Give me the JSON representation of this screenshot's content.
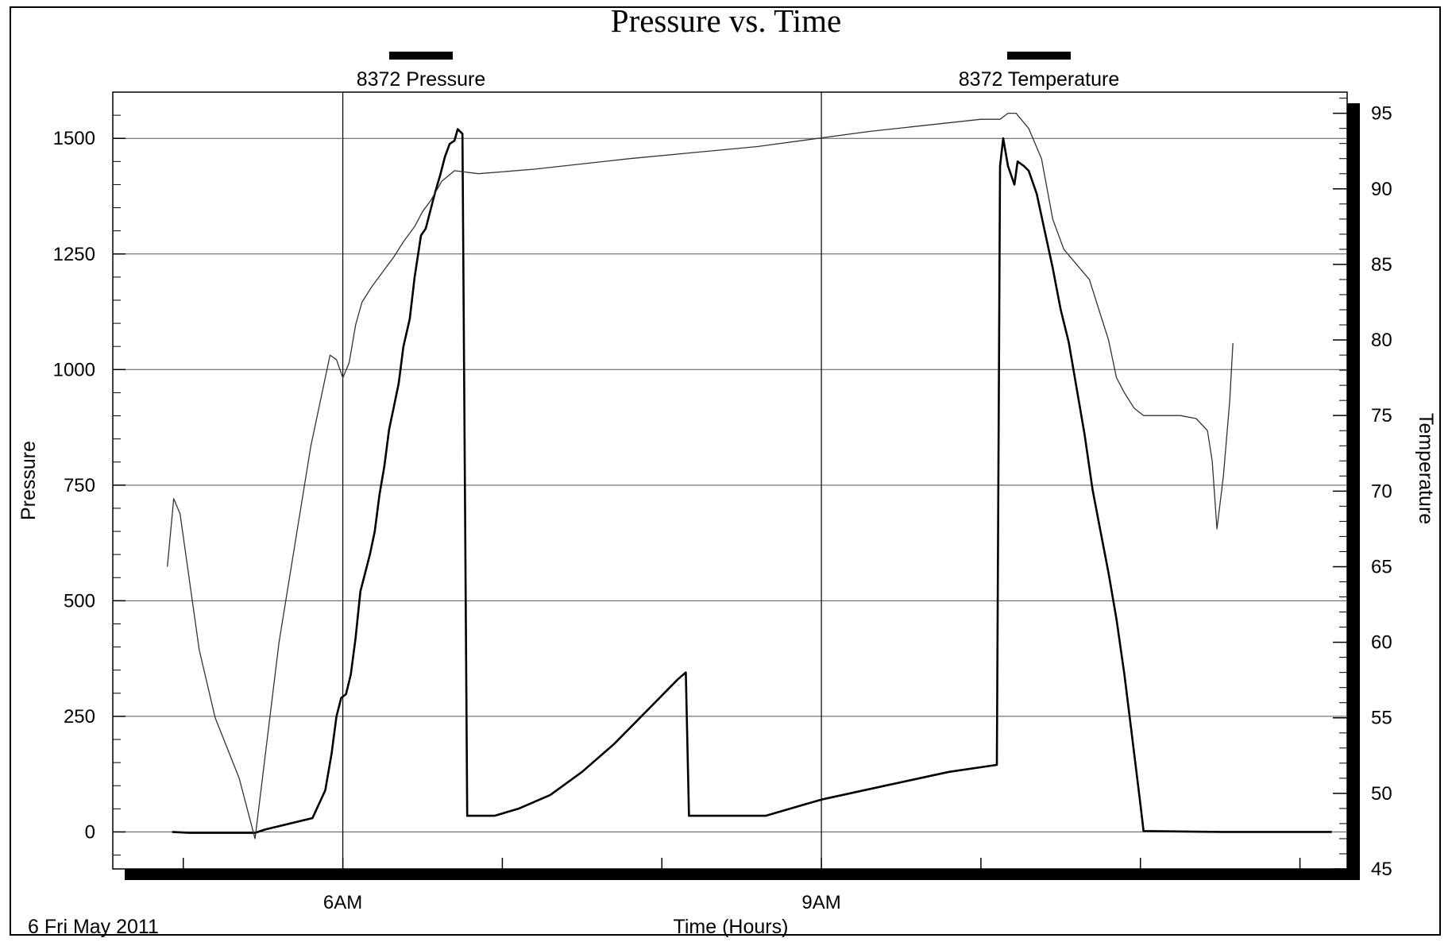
{
  "chart_data": {
    "type": "line",
    "title": "Pressure vs. Time",
    "xlabel": "Time (Hours)",
    "date_label": "6 Fri May 2011",
    "x_ticks": [
      {
        "label": "6AM",
        "hour": 6
      },
      {
        "label": "9AM",
        "hour": 9
      }
    ],
    "xlim": [
      4.558,
      12.296
    ],
    "y_left": {
      "label": "Pressure",
      "ylim": [
        -80,
        1600
      ],
      "ticks": [
        0,
        250,
        500,
        750,
        1000,
        1250,
        1500
      ]
    },
    "y_right": {
      "label": "Temperature",
      "ylim": [
        45,
        96.4
      ],
      "ticks": [
        45,
        50,
        55,
        60,
        65,
        70,
        75,
        80,
        85,
        90,
        95
      ]
    },
    "grid": true,
    "legend_position": "top",
    "series": [
      {
        "name": "8372 Pressure",
        "axis": "left",
        "color": "#000000",
        "points": [
          [
            4.93,
            0
          ],
          [
            5.04,
            -2
          ],
          [
            5.25,
            -2
          ],
          [
            5.45,
            -2
          ],
          [
            5.51,
            5
          ],
          [
            5.81,
            30
          ],
          [
            5.89,
            90
          ],
          [
            5.93,
            170
          ],
          [
            5.96,
            250
          ],
          [
            5.99,
            290
          ],
          [
            6.02,
            298
          ],
          [
            6.05,
            340
          ],
          [
            6.08,
            420
          ],
          [
            6.11,
            520
          ],
          [
            6.14,
            560
          ],
          [
            6.17,
            600
          ],
          [
            6.2,
            650
          ],
          [
            6.23,
            730
          ],
          [
            6.26,
            790
          ],
          [
            6.29,
            870
          ],
          [
            6.32,
            920
          ],
          [
            6.35,
            970
          ],
          [
            6.38,
            1050
          ],
          [
            6.42,
            1110
          ],
          [
            6.45,
            1200
          ],
          [
            6.49,
            1290
          ],
          [
            6.52,
            1305
          ],
          [
            6.55,
            1345
          ],
          [
            6.58,
            1385
          ],
          [
            6.61,
            1420
          ],
          [
            6.64,
            1460
          ],
          [
            6.67,
            1488
          ],
          [
            6.7,
            1495
          ],
          [
            6.72,
            1520
          ],
          [
            6.75,
            1510
          ],
          [
            6.78,
            35
          ],
          [
            6.95,
            35
          ],
          [
            7.1,
            50
          ],
          [
            7.3,
            80
          ],
          [
            7.5,
            130
          ],
          [
            7.7,
            190
          ],
          [
            7.9,
            260
          ],
          [
            8.1,
            330
          ],
          [
            8.15,
            345
          ],
          [
            8.17,
            35
          ],
          [
            8.35,
            35
          ],
          [
            8.65,
            35
          ],
          [
            9.0,
            70
          ],
          [
            9.4,
            100
          ],
          [
            9.8,
            130
          ],
          [
            10.1,
            145
          ],
          [
            10.12,
            1440
          ],
          [
            10.14,
            1500
          ],
          [
            10.17,
            1440
          ],
          [
            10.21,
            1400
          ],
          [
            10.23,
            1450
          ],
          [
            10.27,
            1440
          ],
          [
            10.3,
            1430
          ],
          [
            10.35,
            1380
          ],
          [
            10.4,
            1300
          ],
          [
            10.45,
            1220
          ],
          [
            10.5,
            1130
          ],
          [
            10.55,
            1060
          ],
          [
            10.6,
            960
          ],
          [
            10.65,
            860
          ],
          [
            10.7,
            740
          ],
          [
            10.75,
            650
          ],
          [
            10.8,
            560
          ],
          [
            10.85,
            460
          ],
          [
            10.9,
            340
          ],
          [
            10.95,
            200
          ],
          [
            11.0,
            60
          ],
          [
            11.02,
            2
          ],
          [
            11.5,
            0
          ],
          [
            11.7,
            0
          ],
          [
            12.2,
            0
          ]
        ]
      },
      {
        "name": "8372 Temperature",
        "axis": "right",
        "color": "#333333",
        "points": [
          [
            4.9,
            65.0
          ],
          [
            4.94,
            69.5
          ],
          [
            4.98,
            68.5
          ],
          [
            5.1,
            59.5
          ],
          [
            5.2,
            55.0
          ],
          [
            5.35,
            51.0
          ],
          [
            5.45,
            47.0
          ],
          [
            5.6,
            60.0
          ],
          [
            5.8,
            73.0
          ],
          [
            5.92,
            79.0
          ],
          [
            5.96,
            78.7
          ],
          [
            6.0,
            77.5
          ],
          [
            6.04,
            78.5
          ],
          [
            6.08,
            81.0
          ],
          [
            6.12,
            82.5
          ],
          [
            6.18,
            83.5
          ],
          [
            6.25,
            84.5
          ],
          [
            6.32,
            85.5
          ],
          [
            6.38,
            86.5
          ],
          [
            6.45,
            87.5
          ],
          [
            6.5,
            88.5
          ],
          [
            6.55,
            89.2
          ],
          [
            6.62,
            90.5
          ],
          [
            6.7,
            91.2
          ],
          [
            6.85,
            91.0
          ],
          [
            7.2,
            91.3
          ],
          [
            7.8,
            92.0
          ],
          [
            8.6,
            92.8
          ],
          [
            9.3,
            93.8
          ],
          [
            10.0,
            94.6
          ],
          [
            10.12,
            94.6
          ],
          [
            10.17,
            95.0
          ],
          [
            10.22,
            95.0
          ],
          [
            10.3,
            94.0
          ],
          [
            10.38,
            92.0
          ],
          [
            10.45,
            88.0
          ],
          [
            10.52,
            86.0
          ],
          [
            10.6,
            85.0
          ],
          [
            10.68,
            84.0
          ],
          [
            10.74,
            82.0
          ],
          [
            10.8,
            80.0
          ],
          [
            10.85,
            77.5
          ],
          [
            10.9,
            76.5
          ],
          [
            10.96,
            75.5
          ],
          [
            11.02,
            75.0
          ],
          [
            11.1,
            75.0
          ],
          [
            11.25,
            75.0
          ],
          [
            11.35,
            74.8
          ],
          [
            11.42,
            74.0
          ],
          [
            11.45,
            72.0
          ],
          [
            11.48,
            67.5
          ],
          [
            11.52,
            71.0
          ],
          [
            11.56,
            76.0
          ],
          [
            11.58,
            79.8
          ]
        ]
      }
    ]
  }
}
